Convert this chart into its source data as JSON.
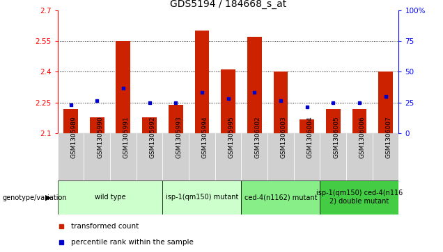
{
  "title": "GDS5194 / 184668_s_at",
  "samples": [
    "GSM1305989",
    "GSM1305990",
    "GSM1305991",
    "GSM1305992",
    "GSM1305993",
    "GSM1305994",
    "GSM1305995",
    "GSM1306002",
    "GSM1306003",
    "GSM1306004",
    "GSM1306005",
    "GSM1306006",
    "GSM1306007"
  ],
  "red_values": [
    2.22,
    2.18,
    2.55,
    2.18,
    2.24,
    2.6,
    2.41,
    2.57,
    2.4,
    2.17,
    2.22,
    2.22,
    2.4
  ],
  "blue_values": [
    2.24,
    2.26,
    2.32,
    2.25,
    2.25,
    2.3,
    2.27,
    2.3,
    2.26,
    2.23,
    2.25,
    2.25,
    2.28
  ],
  "ylim": [
    2.1,
    2.7
  ],
  "yticks": [
    2.1,
    2.25,
    2.4,
    2.55,
    2.7
  ],
  "right_yticks": [
    0,
    25,
    50,
    75,
    100
  ],
  "dotted_lines": [
    2.25,
    2.4,
    2.55
  ],
  "bar_bottom": 2.1,
  "bar_color": "#cc2200",
  "dot_color": "#0000cc",
  "groups": [
    {
      "label": "wild type",
      "start": 0,
      "end": 3,
      "color": "#ccffcc"
    },
    {
      "label": "isp-1(qm150) mutant",
      "start": 4,
      "end": 6,
      "color": "#ccffcc"
    },
    {
      "label": "ced-4(n1162) mutant",
      "start": 7,
      "end": 9,
      "color": "#88ee88"
    },
    {
      "label": "isp-1(qm150) ced-4(n116\n2) double mutant",
      "start": 10,
      "end": 12,
      "color": "#44cc44"
    }
  ],
  "legend_label_red": "transformed count",
  "legend_label_blue": "percentile rank within the sample",
  "genotype_label": "genotype/variation",
  "title_fontsize": 10,
  "tick_fontsize": 7.5,
  "label_fontsize": 6.5,
  "group_fontsize": 7.0,
  "xtick_bg": "#d0d0d0"
}
